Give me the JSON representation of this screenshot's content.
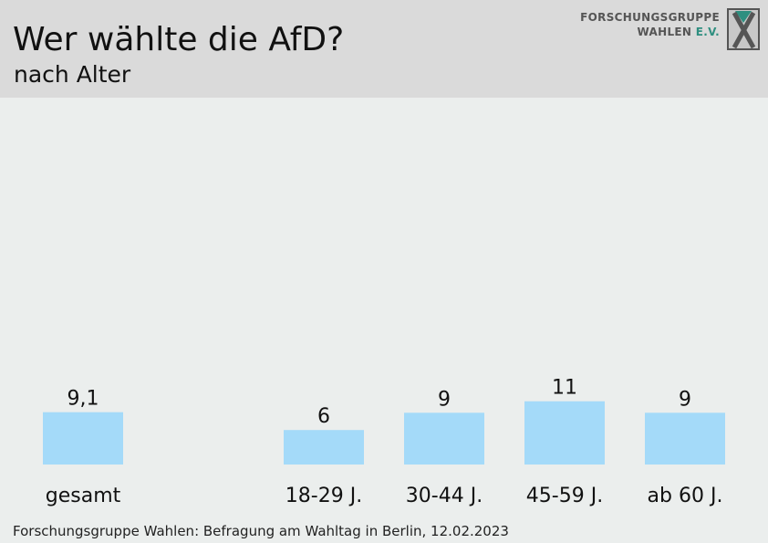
{
  "header": {
    "title": "Wer wählte die AfD?",
    "subtitle": "nach Alter"
  },
  "logo": {
    "line1": "FORSCHUNGSGRUPPE",
    "line2_main": "WAHLEN",
    "line2_accent": "E.V."
  },
  "chart_data": {
    "type": "bar",
    "categories": [
      "gesamt",
      "18-29 J.",
      "30-44 J.",
      "45-59 J.",
      "ab 60 J."
    ],
    "values": [
      9.1,
      6,
      9,
      11,
      9
    ],
    "value_labels": [
      "9,1",
      "6",
      "9",
      "11",
      "9"
    ],
    "title": "Wer wählte die AfD?",
    "subtitle": "nach Alter",
    "xlabel": "",
    "ylabel": "",
    "grid": false,
    "bar_color": "#a4daf9"
  },
  "footer": {
    "source": "Forschungsgruppe Wahlen: Befragung am Wahltag in Berlin, 12.02.2023"
  }
}
